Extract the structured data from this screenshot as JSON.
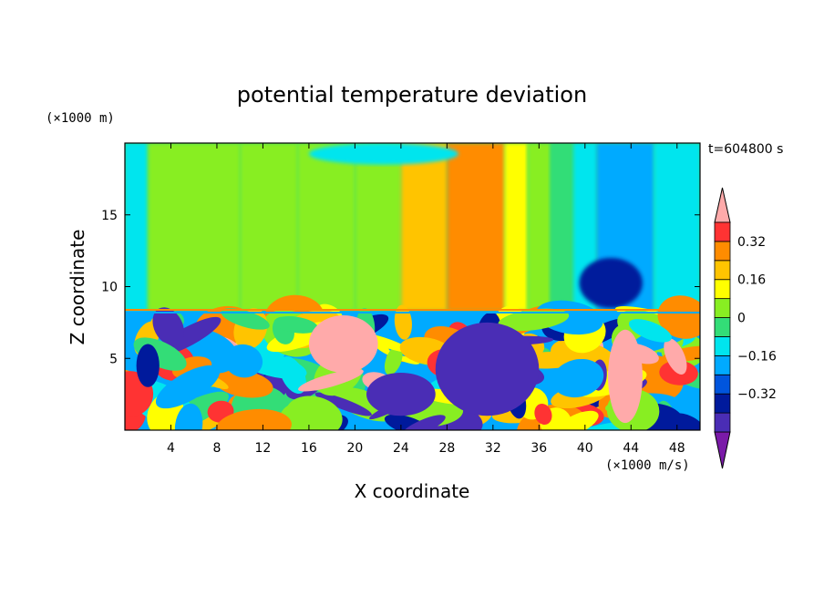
{
  "chart_data": {
    "type": "heatmap",
    "title": "potential temperature deviation",
    "xlabel": "X coordinate",
    "ylabel": "Z coordinate",
    "x_units": "(×1000 m/s)",
    "y_units": "(×1000 m)",
    "time_label": "t=604800 s",
    "xlim": [
      0,
      50
    ],
    "ylim": [
      0,
      20
    ],
    "x_ticks": [
      4,
      8,
      12,
      16,
      20,
      24,
      28,
      32,
      36,
      40,
      44,
      48
    ],
    "y_ticks": [
      5,
      10,
      15
    ],
    "x_tick_labels": [
      "4",
      "8",
      "12",
      "16",
      "20",
      "24",
      "28",
      "32",
      "36",
      "40",
      "44",
      "48"
    ],
    "y_tick_labels": [
      "5",
      "10",
      "15"
    ],
    "colorbar": {
      "levels": [
        -0.48,
        -0.4,
        -0.32,
        -0.24,
        -0.16,
        -0.08,
        0,
        0.08,
        0.16,
        0.24,
        0.32,
        0.4
      ],
      "colors": [
        "#7a1aa8",
        "#4a2db5",
        "#001a9c",
        "#0055dd",
        "#00aaff",
        "#00e5ee",
        "#33dd77",
        "#88ee22",
        "#ffff00",
        "#ffc400",
        "#ff8c00",
        "#ff3333",
        "#ffaaaa"
      ],
      "labeled_ticks": [
        -0.32,
        -0.16,
        0,
        0.16,
        0.32
      ],
      "tick_labels": [
        "−0.32",
        "−0.16",
        "0",
        "0.16",
        "0.32"
      ],
      "extend": "both"
    },
    "upper_layer": {
      "z_range": [
        8.3,
        20
      ],
      "columns": [
        {
          "x": [
            0,
            2
          ],
          "value": -0.12
        },
        {
          "x": [
            2,
            10
          ],
          "value": 0.04
        },
        {
          "x": [
            10,
            15
          ],
          "value": 0.06
        },
        {
          "x": [
            15,
            20
          ],
          "value": 0.02
        },
        {
          "x": [
            20,
            24
          ],
          "value": 0.06
        },
        {
          "x": [
            24,
            28
          ],
          "value": 0.18
        },
        {
          "x": [
            28,
            33
          ],
          "value": 0.26
        },
        {
          "x": [
            33,
            35
          ],
          "value": 0.12
        },
        {
          "x": [
            35,
            37
          ],
          "value": 0.06
        },
        {
          "x": [
            37,
            39
          ],
          "value": -0.02
        },
        {
          "x": [
            39,
            41
          ],
          "value": -0.12
        },
        {
          "x": [
            41,
            46
          ],
          "value": -0.22
        },
        {
          "x": [
            46,
            50
          ],
          "value": -0.12
        }
      ],
      "features": [
        {
          "description": "cyan cap at top",
          "x": [
            16,
            29
          ],
          "z": [
            18.5,
            20
          ],
          "value": -0.1
        },
        {
          "description": "dark blue core",
          "x": [
            39.5,
            45
          ],
          "z": [
            8.5,
            12
          ],
          "value": -0.36
        }
      ]
    },
    "lower_layer": {
      "z_range": [
        0,
        8.3
      ],
      "description": "turbulent mixed layer with alternating warm and cold anomalies",
      "features": [
        {
          "x": [
            27,
            36
          ],
          "z": [
            1,
            7.5
          ],
          "value": -0.44
        },
        {
          "x": [
            21,
            27
          ],
          "z": [
            1,
            4
          ],
          "value": -0.44
        },
        {
          "x": [
            16,
            22
          ],
          "z": [
            4,
            8
          ],
          "value": 0.42
        },
        {
          "x": [
            42,
            45
          ],
          "z": [
            0.5,
            7
          ],
          "value": 0.42
        },
        {
          "x": [
            1,
            3
          ],
          "z": [
            3,
            6
          ],
          "value": -0.36
        }
      ]
    }
  }
}
